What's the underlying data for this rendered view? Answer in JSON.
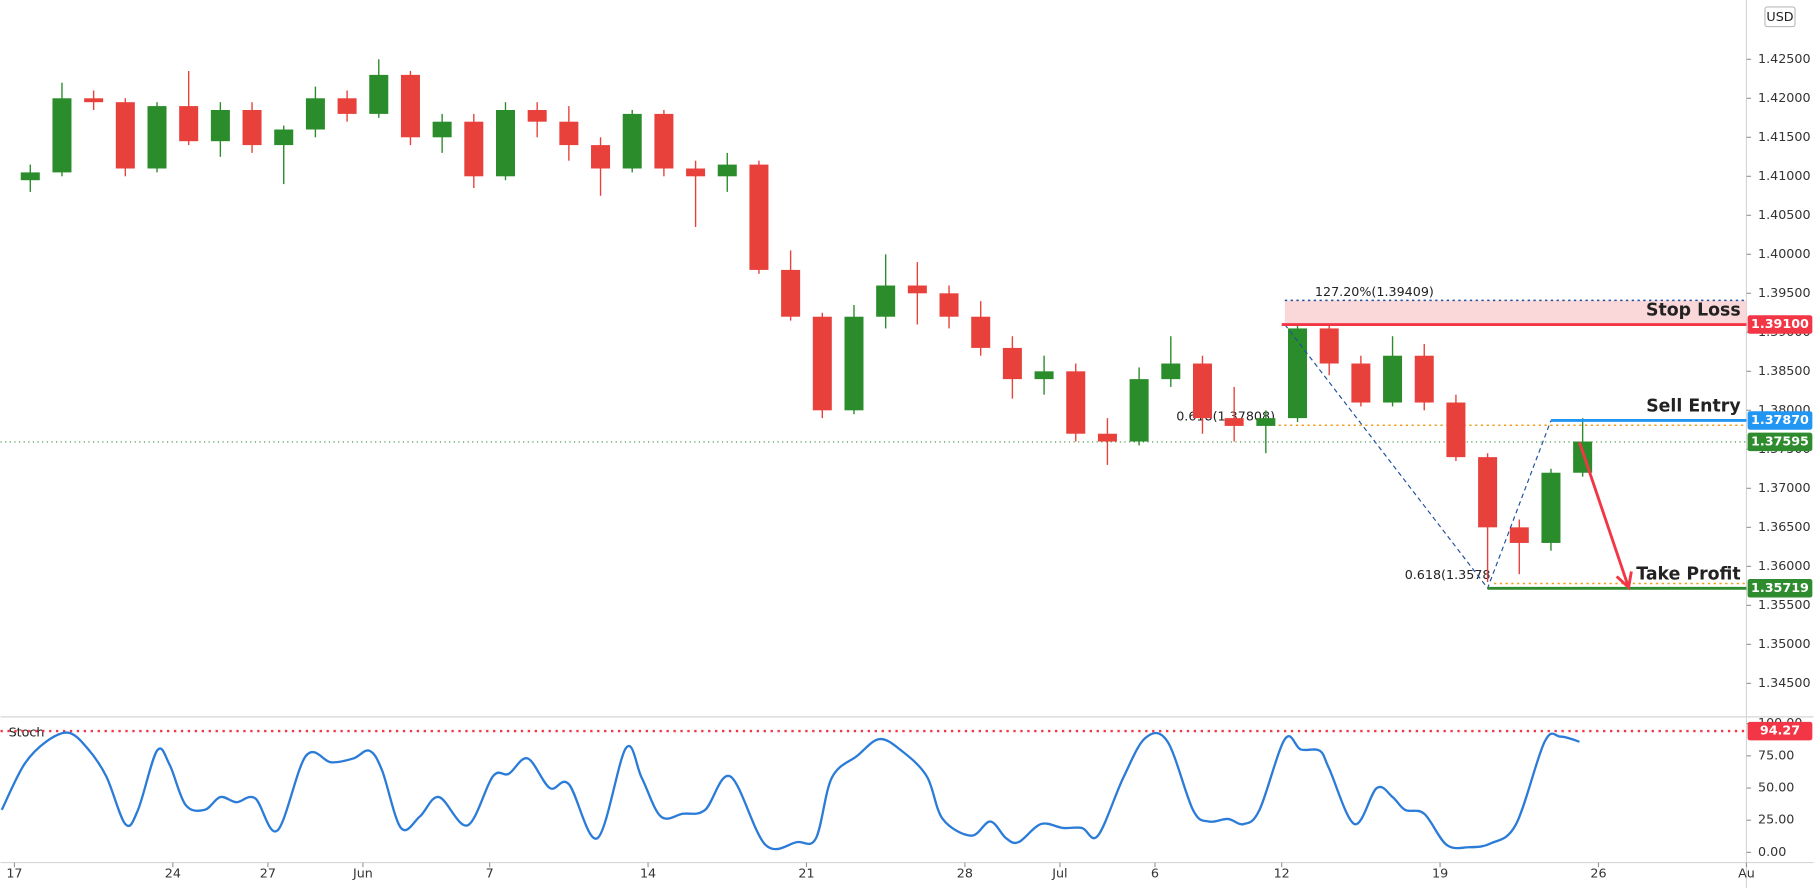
{
  "chart_data": {
    "type": "candlestick",
    "currency": "USD",
    "up_color": "#2b8c2b",
    "down_color": "#e8413c",
    "x": [
      0.5,
      1.5,
      2.5,
      3.5,
      4.5,
      5.5,
      6.5,
      7.5,
      8.5,
      9.5,
      10.5,
      11.5,
      12.5,
      13.5,
      14.5,
      15.5,
      16.5,
      17.5,
      18.5,
      19.5,
      20.5,
      21.5,
      22.5,
      23.5,
      24.5,
      25.5,
      26.5,
      27.5,
      28.5,
      29.5,
      30.5,
      31.5,
      32.5,
      33.5,
      34.5,
      35.5,
      36.5,
      37.5,
      38.5,
      39.5,
      40.5,
      41.5,
      42.5,
      43.5,
      44.5,
      45.5,
      46.5,
      47.5,
      48.5,
      49.5
    ],
    "open": [
      1.4095,
      1.4105,
      1.42,
      1.4195,
      1.411,
      1.419,
      1.4145,
      1.4185,
      1.414,
      1.416,
      1.42,
      1.418,
      1.423,
      1.415,
      1.417,
      1.41,
      1.4185,
      1.417,
      1.414,
      1.411,
      1.418,
      1.411,
      1.41,
      1.4115,
      1.398,
      1.392,
      1.38,
      1.392,
      1.396,
      1.395,
      1.392,
      1.388,
      1.384,
      1.385,
      1.377,
      1.376,
      1.384,
      1.386,
      1.379,
      1.378,
      1.379,
      1.3905,
      1.386,
      1.381,
      1.387,
      1.381,
      1.374,
      1.365,
      1.363,
      1.372
    ],
    "high": [
      1.4115,
      1.422,
      1.421,
      1.42,
      1.4195,
      1.4235,
      1.4195,
      1.4195,
      1.4165,
      1.4215,
      1.421,
      1.425,
      1.4235,
      1.418,
      1.418,
      1.4195,
      1.4195,
      1.419,
      1.415,
      1.4185,
      1.4185,
      1.412,
      1.413,
      1.412,
      1.4005,
      1.3925,
      1.3935,
      1.4,
      1.399,
      1.396,
      1.394,
      1.3895,
      1.387,
      1.386,
      1.379,
      1.3855,
      1.3895,
      1.387,
      1.383,
      1.38,
      1.391,
      1.391,
      1.387,
      1.3895,
      1.3885,
      1.382,
      1.3745,
      1.366,
      1.3725,
      1.379
    ],
    "low": [
      1.408,
      1.41,
      1.4185,
      1.41,
      1.4105,
      1.414,
      1.4125,
      1.413,
      1.409,
      1.415,
      1.417,
      1.4175,
      1.414,
      1.413,
      1.4085,
      1.4095,
      1.415,
      1.412,
      1.4075,
      1.4105,
      1.41,
      1.4035,
      1.408,
      1.3975,
      1.3915,
      1.379,
      1.3795,
      1.3905,
      1.391,
      1.3905,
      1.387,
      1.3815,
      1.382,
      1.376,
      1.373,
      1.3755,
      1.383,
      1.377,
      1.376,
      1.3745,
      1.3785,
      1.3845,
      1.3805,
      1.3805,
      1.38,
      1.3735,
      1.358,
      1.359,
      1.362,
      1.3715
    ],
    "close": [
      1.4105,
      1.42,
      1.4195,
      1.411,
      1.419,
      1.4145,
      1.4185,
      1.414,
      1.416,
      1.42,
      1.418,
      1.423,
      1.415,
      1.417,
      1.41,
      1.4185,
      1.417,
      1.414,
      1.411,
      1.418,
      1.411,
      1.41,
      1.4115,
      1.398,
      1.392,
      1.38,
      1.392,
      1.396,
      1.395,
      1.392,
      1.388,
      1.384,
      1.385,
      1.377,
      1.376,
      1.384,
      1.386,
      1.379,
      1.378,
      1.379,
      1.3905,
      1.386,
      1.381,
      1.387,
      1.381,
      1.374,
      1.365,
      1.363,
      1.372,
      1.376
    ],
    "xlim": [
      -0.44,
      54.67
    ],
    "xticks": [
      {
        "value": 0,
        "label": "17"
      },
      {
        "value": 5,
        "label": "24"
      },
      {
        "value": 8,
        "label": "27"
      },
      {
        "value": 11,
        "label": "Jun"
      },
      {
        "value": 15,
        "label": "7"
      },
      {
        "value": 20,
        "label": "14"
      },
      {
        "value": 25,
        "label": "21"
      },
      {
        "value": 30,
        "label": "28"
      },
      {
        "value": 33,
        "label": "Jul"
      },
      {
        "value": 36,
        "label": "6"
      },
      {
        "value": 40,
        "label": "12"
      },
      {
        "value": 45,
        "label": "19"
      },
      {
        "value": 50,
        "label": "26"
      },
      {
        "value": 54.67,
        "label": "Au"
      }
    ],
    "ylim": [
      1.341,
      1.4326
    ],
    "yticks": [
      {
        "value": 1.345,
        "label": "1.34500"
      },
      {
        "value": 1.35,
        "label": "1.35000"
      },
      {
        "value": 1.355,
        "label": "1.35500"
      },
      {
        "value": 1.36,
        "label": "1.36000"
      },
      {
        "value": 1.365,
        "label": "1.36500"
      },
      {
        "value": 1.37,
        "label": "1.37000"
      },
      {
        "value": 1.375,
        "label": "1.37500"
      },
      {
        "value": 1.38,
        "label": "1.38000"
      },
      {
        "value": 1.385,
        "label": "1.38500"
      },
      {
        "value": 1.39,
        "label": "1.39000"
      },
      {
        "value": 1.395,
        "label": "1.39500"
      },
      {
        "value": 1.4,
        "label": "1.40000"
      },
      {
        "value": 1.405,
        "label": "1.40500"
      },
      {
        "value": 1.41,
        "label": "1.41000"
      },
      {
        "value": 1.415,
        "label": "1.41500"
      },
      {
        "value": 1.42,
        "label": "1.42000"
      },
      {
        "value": 1.425,
        "label": "1.42500"
      }
    ],
    "zone": {
      "from": 1.391,
      "to": 1.39409,
      "start_x": 40.1,
      "color": "#f9cdd0"
    },
    "levels": [
      {
        "name": "Stop Loss",
        "value": 1.391,
        "label": "1.39100",
        "color": "#f23645",
        "start_x": 40.0
      },
      {
        "name": "Sell Entry",
        "value": 1.3787,
        "label": "1.37870",
        "color": "#2196f3",
        "start_x": 48.5
      },
      {
        "name": "Take Profit",
        "value": 1.35719,
        "label": "1.35719",
        "color": "#2e8b2e",
        "start_x": 46.5
      }
    ],
    "price_line": {
      "value": 1.37595,
      "label": "1.37595",
      "color": "#2e8b2e"
    },
    "fibs": [
      {
        "label": "127.20%(1.39409)",
        "value": 1.39409,
        "start_x": 40.1,
        "color": "#1e4f9c"
      },
      {
        "label": "0.618(1.37808)",
        "value": 1.37808,
        "start_x": 39.9,
        "color": "#f0a020"
      },
      {
        "label": "0.618(1.3578",
        "value": 1.3578,
        "start_x": 46.7,
        "color": "#f0a020"
      }
    ],
    "zigzag": {
      "x": [
        40.1,
        46.5,
        48.5
      ],
      "values": [
        1.391,
        1.3572,
        1.3787
      ],
      "color": "#1e4f9c"
    },
    "arrow": {
      "x": [
        49.4,
        50.95
      ],
      "values": [
        1.3759,
        1.3573
      ],
      "color": "#f23645"
    },
    "stoch": {
      "name": "Stoch",
      "color": "#2b7bd8",
      "x": [
        -0.4,
        0.3,
        1.0,
        1.7,
        2.3,
        2.9,
        3.5,
        3.9,
        4.5,
        4.9,
        5.4,
        6.0,
        6.5,
        7.0,
        7.6,
        8.3,
        9.2,
        10.0,
        10.7,
        11.2,
        11.6,
        12.2,
        12.8,
        13.4,
        14.3,
        15.1,
        15.6,
        16.2,
        16.9,
        17.5,
        18.4,
        19.3,
        19.8,
        20.4,
        21.1,
        21.8,
        22.6,
        23.7,
        24.7,
        25.3,
        25.8,
        26.6,
        27.3,
        28.0,
        28.8,
        29.3,
        30.2,
        30.8,
        31.3,
        31.7,
        32.4,
        33.1,
        33.7,
        34.2,
        35.0,
        35.7,
        36.4,
        37.2,
        37.7,
        38.3,
        38.8,
        39.3,
        40.1,
        40.6,
        41.2,
        41.5,
        42.3,
        43.0,
        43.5,
        43.9,
        44.5,
        45.2,
        45.9,
        46.6,
        47.4,
        48.3,
        48.8,
        49.4
      ],
      "values": [
        33,
        68,
        86,
        93,
        81,
        59,
        22,
        33,
        79,
        68,
        37,
        33,
        43,
        39,
        42,
        17,
        75,
        70,
        73,
        79,
        64,
        19,
        28,
        43,
        21,
        59,
        61,
        73,
        50,
        53,
        11,
        81,
        58,
        28,
        30,
        33,
        59,
        6,
        8,
        11,
        58,
        75,
        88,
        79,
        59,
        26,
        13,
        24,
        11,
        8,
        22,
        19,
        19,
        13,
        58,
        89,
        86,
        33,
        24,
        26,
        22,
        33,
        88,
        80,
        79,
        65,
        22,
        50,
        43,
        33,
        30,
        6,
        4,
        7,
        22,
        86,
        90,
        86
      ],
      "ylim": [
        -7,
        103.5
      ],
      "yticks": [
        {
          "value": 0,
          "label": "0.00"
        },
        {
          "value": 25,
          "label": "25.00"
        },
        {
          "value": 50,
          "label": "50.00"
        },
        {
          "value": 75,
          "label": "75.00"
        },
        {
          "value": 100,
          "label": "100.00"
        }
      ],
      "level": {
        "value": 94.27,
        "label": "94.27",
        "color": "#f23645"
      }
    }
  }
}
